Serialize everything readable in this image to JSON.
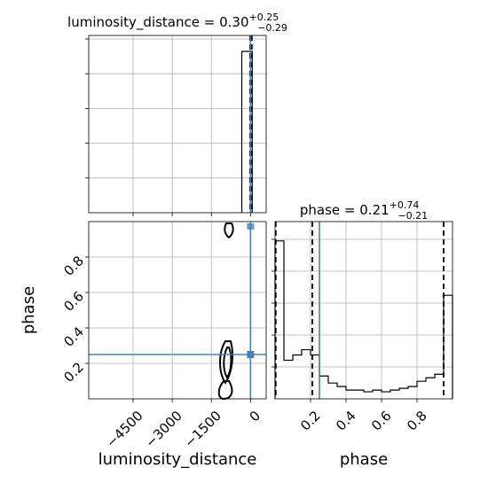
{
  "chart_data": [
    {
      "type": "histogram",
      "panel": "luminosity_distance marginal",
      "title_prefix": "luminosity_distance = 0.30",
      "title_plus": "+0.25",
      "title_minus": "−0.29",
      "xlim": [
        -6200,
        600
      ],
      "bins": [
        [
          -300,
          -30,
          1.0
        ],
        [
          -30,
          30,
          1.0
        ]
      ],
      "peak_norm": 1.0,
      "quantiles": [
        0.01,
        0.3,
        0.55
      ],
      "truth": 0.25,
      "grid": true
    },
    {
      "type": "contour",
      "panel": "phase vs luminosity_distance",
      "xlabel": "luminosity_distance",
      "ylabel": "phase",
      "xlim": [
        -6200,
        600
      ],
      "ylim": [
        0.0,
        1.0
      ],
      "xticks": [
        -4500,
        -3000,
        -1500,
        0
      ],
      "xtick_labels": [
        "−4500",
        "−3000",
        "−1500",
        "0"
      ],
      "yticks": [
        0.2,
        0.4,
        0.6,
        0.8
      ],
      "ytick_labels": [
        "0.2",
        "0.4",
        "0.6",
        "0.8"
      ],
      "truth_x": 0.25,
      "truth_y": 0.25,
      "grid": true
    },
    {
      "type": "histogram",
      "panel": "phase marginal",
      "title_prefix": "phase = 0.21",
      "title_plus": "+0.74",
      "title_minus": "−0.21",
      "xlabel": "phase",
      "xlim": [
        0.0,
        1.0
      ],
      "xticks": [
        0.2,
        0.4,
        0.6,
        0.8
      ],
      "xtick_labels": [
        "0.2",
        "0.4",
        "0.6",
        "0.8"
      ],
      "bin_edges": [
        0.0,
        0.05,
        0.1,
        0.15,
        0.2,
        0.25,
        0.3,
        0.35,
        0.4,
        0.45,
        0.5,
        0.55,
        0.6,
        0.65,
        0.7,
        0.75,
        0.8,
        0.85,
        0.9,
        0.95,
        1.0
      ],
      "heights": [
        0.9,
        0.22,
        0.25,
        0.28,
        0.25,
        0.13,
        0.09,
        0.07,
        0.05,
        0.05,
        0.04,
        0.05,
        0.04,
        0.05,
        0.06,
        0.07,
        0.1,
        0.12,
        0.14,
        0.59
      ],
      "quantiles": [
        0.004,
        0.21,
        0.95
      ],
      "truth": 0.25,
      "grid": true
    }
  ]
}
